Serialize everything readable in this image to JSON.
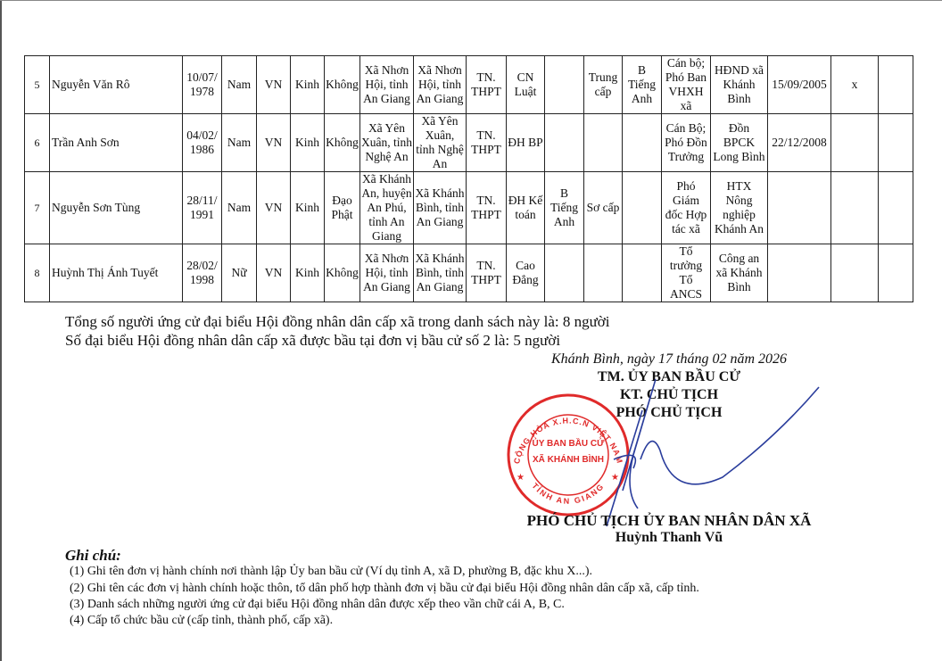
{
  "table": {
    "rows": [
      [
        "5",
        "Nguyễn Văn Rô",
        "10/07/ 1978",
        "Nam",
        "VN",
        "Kinh",
        "Không",
        "Xã Nhơn Hội, tỉnh An Giang",
        "Xã Nhơn Hội, tỉnh An Giang",
        "TN. THPT",
        "CN Luật",
        "",
        "Trung cấp",
        "B Tiếng Anh",
        "Cán bộ; Phó Ban VHXH xã",
        "HĐND xã Khánh Bình",
        "15/09/2005",
        "x",
        ""
      ],
      [
        "6",
        "Trần Anh Sơn",
        "04/02/ 1986",
        "Nam",
        "VN",
        "Kinh",
        "Không",
        "Xã Yên Xuân, tỉnh Nghệ An",
        "Xã Yên Xuân, tỉnh Nghệ An",
        "TN. THPT",
        "ĐH BP",
        "",
        "",
        "",
        "Cán Bộ; Phó Đồn Trưởng",
        "Đồn BPCK Long Bình",
        "22/12/2008",
        "",
        ""
      ],
      [
        "7",
        "Nguyễn Sơn Tùng",
        "28/11/ 1991",
        "Nam",
        "VN",
        "Kinh",
        "Đạo Phật",
        "Xã Khánh An, huyện An Phú, tỉnh An Giang",
        "Xã Khánh Bình, tỉnh An Giang",
        "TN. THPT",
        "ĐH Kế toán",
        "B Tiếng Anh",
        "Sơ cấp",
        "",
        "Phó Giám đốc Hợp tác xã",
        "HTX Nông nghiệp Khánh An",
        "",
        "",
        ""
      ],
      [
        "8",
        "Huỳnh Thị Ánh Tuyết",
        "28/02/ 1998",
        "Nữ",
        "VN",
        "Kinh",
        "Không",
        "Xã Nhơn Hội, tỉnh An Giang",
        "Xã Khánh Bình, tỉnh An Giang",
        "TN. THPT",
        "Cao Đẳng",
        "",
        "",
        "",
        "Tổ trưởng Tổ ANCS",
        "Công an xã Khánh Bình",
        "",
        "",
        ""
      ]
    ]
  },
  "summary": {
    "total": "Tổng số người ứng cử đại biểu Hội đồng nhân dân cấp xã trong danh sách này là: 8 người",
    "elected": "Số đại biểu Hội đồng nhân dân cấp xã được bầu tại đơn vị bầu cử số 2 là: 5 người"
  },
  "signature": {
    "place_date": "Khánh Bình, ngày 17 tháng 02 năm 2026",
    "line1": "TM. ỦY BAN BẦU CỬ",
    "line2": "KT. CHỦ TỊCH",
    "line3": "PHÓ CHỦ TỊCH",
    "position": "PHÓ CHỦ TỊCH ỦY BAN NHÂN DÂN XÃ",
    "name": "Huỳnh Thanh Vũ"
  },
  "stamp": {
    "outer_top": "CỘNG HÒA X.H.C.N VIỆT NAM",
    "outer_bottom": "TỈNH AN GIANG",
    "center1": "ỦY BAN BẦU CỬ",
    "center2": "XÃ KHÁNH BÌNH",
    "color": "#e02a2a"
  },
  "signature_ink_color": "#2a3d9c",
  "notes": {
    "title": "Ghi chú:",
    "items": [
      "(1)  Ghi tên đơn vị hành chính nơi thành lập Ủy ban bầu cử (Ví dụ tỉnh A, xã D, phường B, đặc khu X...).",
      "(2)  Ghi tên các đơn vị hành chính hoặc thôn, tổ dân phố hợp thành đơn vị bầu cử đại biểu Hội đồng nhân dân cấp xã, cấp tỉnh.",
      "(3)  Danh sách những người ứng cử đại biểu Hội đồng nhân dân được xếp theo vần chữ cái A, B, C.",
      "(4) Cấp tổ chức bầu cử (cấp tỉnh, thành phố, cấp xã)."
    ]
  }
}
